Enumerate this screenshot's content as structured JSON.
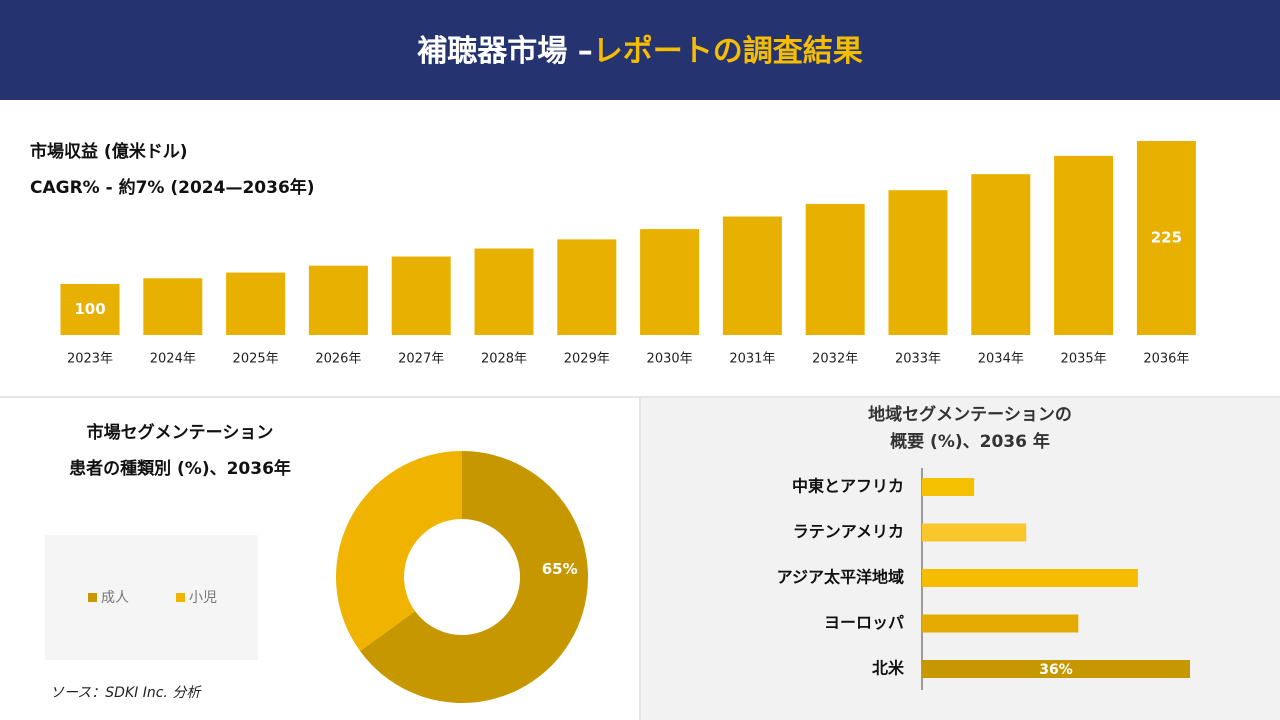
{
  "header": {
    "title_main": "補聴器市場 –",
    "title_highlight": "レポートの調査結果"
  },
  "source": "ソース：SDKI Inc. 分析",
  "chart_data": [
    {
      "type": "bar",
      "title": "市場収益 (億米ドル)",
      "subtitle": "CAGR% - 約7% (2024—2036年)",
      "categories": [
        "2023年",
        "2024年",
        "2025年",
        "2026年",
        "2027年",
        "2028年",
        "2029年",
        "2030年",
        "2031年",
        "2032年",
        "2033年",
        "2034年",
        "2035年",
        "2036年"
      ],
      "values": [
        100,
        105,
        110,
        116,
        124,
        131,
        139,
        148,
        159,
        170,
        182,
        196,
        212,
        225
      ],
      "value_labels": [
        "100",
        null,
        null,
        null,
        null,
        null,
        null,
        null,
        null,
        null,
        null,
        null,
        null,
        "225"
      ],
      "color": "#e8b000"
    },
    {
      "type": "donut",
      "title": "市場セグメンテーション",
      "subtitle": "患者の種類別 (%)、2036年",
      "categories": [
        "成人",
        "小児"
      ],
      "values": [
        65,
        35
      ],
      "value_labels": [
        "65%",
        null
      ],
      "colors": [
        "#c79700",
        "#efb300"
      ]
    },
    {
      "type": "hbar",
      "title": "地域セグメンテーションの",
      "subtitle": "概要 (%)、2036 年",
      "categories": [
        "中東とアフリカ",
        "ラテンアメリカ",
        "アジア太平洋地域",
        "ヨーロッパ",
        "北米"
      ],
      "values": [
        7,
        14,
        29,
        21,
        36
      ],
      "value_labels": [
        null,
        null,
        null,
        null,
        "36%"
      ],
      "colors": [
        "#f5c000",
        "#f8c62a",
        "#f6bd00",
        "#e3aa00",
        "#c79700"
      ]
    }
  ]
}
